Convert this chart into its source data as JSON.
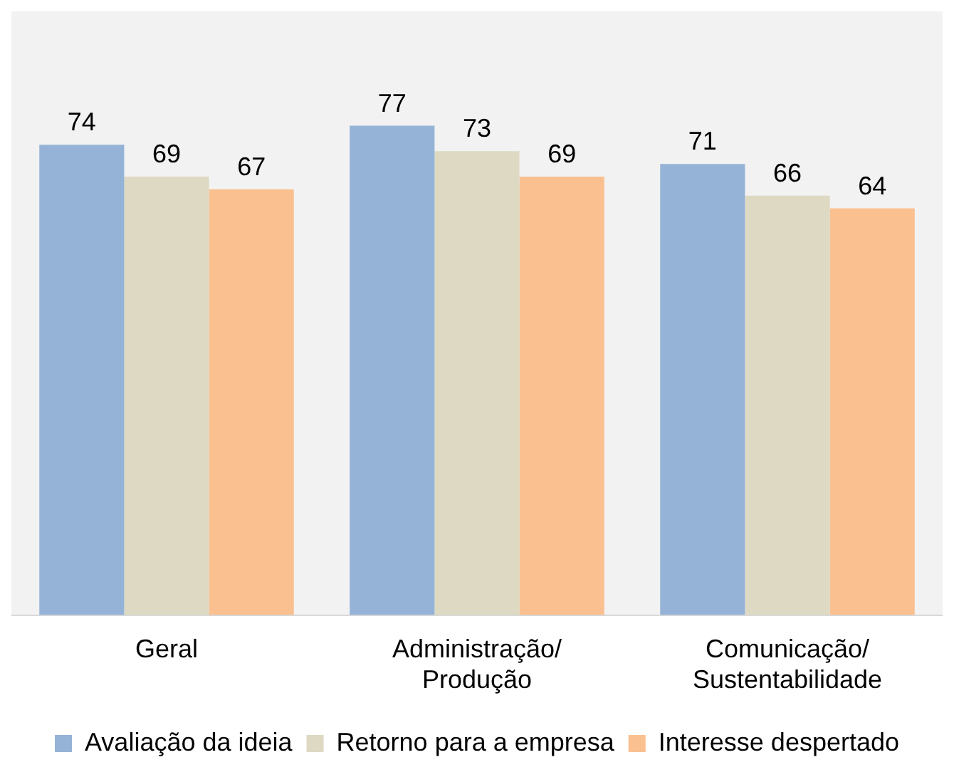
{
  "chart_data": {
    "type": "bar",
    "categories": [
      "Geral",
      "Administração/ Produção",
      "Comunicação/ Sustentabilidade"
    ],
    "series": [
      {
        "name": "Avaliação da ideia",
        "color": "#95b3d7",
        "values": [
          74,
          77,
          71
        ]
      },
      {
        "name": "Retorno para a empresa",
        "color": "#ddd9c3",
        "values": [
          69,
          73,
          66
        ]
      },
      {
        "name": "Interesse despertado",
        "color": "#fac090",
        "values": [
          67,
          69,
          64
        ]
      }
    ],
    "ylim": [
      0,
      95
    ],
    "data_labels": true,
    "legend": "bottom"
  }
}
